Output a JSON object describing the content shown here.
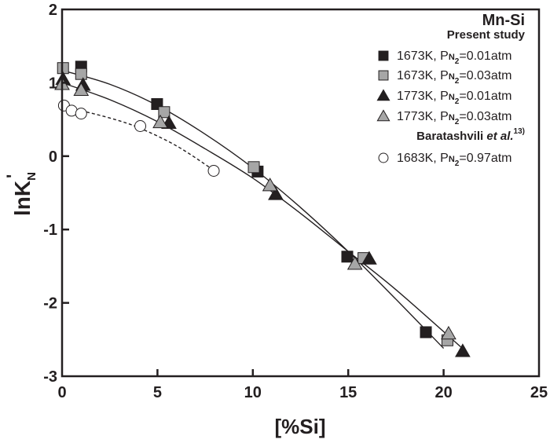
{
  "chart_data": {
    "type": "scatter",
    "title": "Mn-Si",
    "xlabel": "[%Si]",
    "ylabel": "lnK'N",
    "ylabel_main": "lnK",
    "ylabel_prime": "'",
    "ylabel_sub": "N",
    "xlim": [
      0,
      25
    ],
    "ylim": [
      -3,
      2
    ],
    "xticks": [
      0,
      5,
      10,
      15,
      20,
      25
    ],
    "yticks": [
      -3,
      -2,
      -1,
      0,
      1,
      2
    ],
    "xtick_labels": [
      "0",
      "5",
      "10",
      "15",
      "20",
      "25"
    ],
    "ytick_labels": [
      "-3",
      "-2",
      "-1",
      "0",
      "1",
      "2"
    ],
    "grid": false,
    "legend_position": "top-right",
    "legend_groups": [
      {
        "heading": "Present study",
        "series_indices": [
          0,
          1,
          2,
          3
        ]
      },
      {
        "heading": "Baratashvili",
        "heading_italic": "et al.",
        "heading_sup": "13)",
        "series_indices": [
          4
        ]
      }
    ],
    "series": [
      {
        "name": "1673K, PN2=0.01atm",
        "label_main": "1673K, P",
        "label_sub_n": "N",
        "label_sub_2": "2",
        "label_rest": "=0.01atm",
        "marker": "square",
        "fill": "#231f20",
        "x": [
          1.0,
          4.98,
          10.25,
          14.95,
          19.07
        ],
        "y": [
          1.22,
          0.71,
          -0.21,
          -1.37,
          -2.4
        ]
      },
      {
        "name": "1673K, PN2=0.03atm",
        "label_main": "1673K, P",
        "label_sub_n": "N",
        "label_sub_2": "2",
        "label_rest": "=0.03atm",
        "marker": "square",
        "fill": "#a6a6a6",
        "x": [
          0.05,
          1.0,
          5.35,
          10.05,
          15.8,
          20.2
        ],
        "y": [
          1.2,
          1.12,
          0.6,
          -0.15,
          -1.39,
          -2.51
        ]
      },
      {
        "name": "1773K, PN2=0.01atm",
        "label_main": "1773K, P",
        "label_sub_n": "N",
        "label_sub_2": "2",
        "label_rest": "=0.01atm",
        "marker": "triangle",
        "fill": "#231f20",
        "x": [
          0.05,
          1.1,
          5.6,
          11.2,
          16.1,
          21.0
        ],
        "y": [
          1.05,
          0.97,
          0.45,
          -0.52,
          -1.4,
          -2.66
        ]
      },
      {
        "name": "1773K, PN2=0.03atm",
        "label_main": "1773K, P",
        "label_sub_n": "N",
        "label_sub_2": "2",
        "label_rest": "=0.03atm",
        "marker": "triangle",
        "fill": "#a6a6a6",
        "x": [
          0.0,
          1.0,
          5.15,
          10.9,
          15.35,
          20.26
        ],
        "y": [
          0.98,
          0.9,
          0.46,
          -0.4,
          -1.47,
          -2.42
        ]
      },
      {
        "name": "1683K, PN2=0.97atm",
        "label_main": "1683K, P",
        "label_sub_n": "N",
        "label_sub_2": "2",
        "label_rest": "=0.97atm",
        "marker": "circle",
        "fill": "#ffffff",
        "x": [
          0.1,
          0.5,
          1.0,
          4.1,
          7.95
        ],
        "y": [
          0.69,
          0.62,
          0.58,
          0.41,
          -0.2
        ]
      }
    ],
    "fit_curves": [
      {
        "name": "fit-1673K",
        "style": "solid",
        "x": [
          0.0,
          2.5,
          5.0,
          7.5,
          10.0,
          12.5,
          15.0,
          17.5,
          20.0
        ],
        "y": [
          1.17,
          0.98,
          0.69,
          0.3,
          -0.16,
          -0.7,
          -1.3,
          -1.95,
          -2.62
        ]
      },
      {
        "name": "fit-1773K",
        "style": "solid",
        "x": [
          0.0,
          2.5,
          5.0,
          7.5,
          10.0,
          12.5,
          15.0,
          17.5,
          21.2
        ],
        "y": [
          1.0,
          0.77,
          0.47,
          0.1,
          -0.3,
          -0.78,
          -1.3,
          -1.82,
          -2.67
        ]
      },
      {
        "name": "fit-1683K",
        "style": "dashed",
        "x": [
          1.0,
          2.5,
          4.0,
          6.0,
          8.0
        ],
        "y": [
          0.62,
          0.52,
          0.39,
          0.14,
          -0.2
        ]
      }
    ]
  }
}
